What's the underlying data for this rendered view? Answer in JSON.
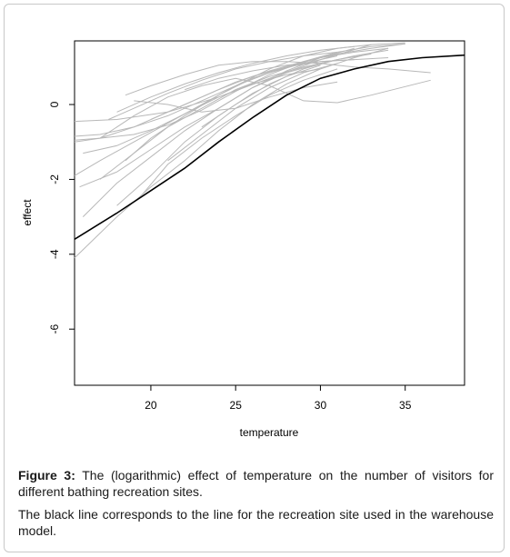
{
  "caption": {
    "figure_label": "Figure 3:",
    "figure_text": " The (logarithmic) effect of temperature on the number of visitors for different bathing recreation sites.",
    "note": "The black line corresponds to the line for the recreation site used in the warehouse model."
  },
  "chart_data": {
    "type": "line",
    "xlabel": "temperature",
    "ylabel": "effect",
    "xlim": [
      15.5,
      38.5
    ],
    "ylim": [
      -7.5,
      1.7
    ],
    "xticks": [
      20,
      25,
      30,
      35
    ],
    "yticks": [
      0,
      -2,
      -4,
      -6
    ],
    "grid": false,
    "colors": {
      "highlight": "#000000",
      "others": "#b8b8b8"
    },
    "series": [
      {
        "highlight": true,
        "x": [
          15.5,
          18,
          20,
          22,
          24,
          26,
          28,
          30,
          32,
          34,
          36,
          38.5
        ],
        "y": [
          -3.6,
          -2.9,
          -2.3,
          -1.7,
          -1.0,
          -0.35,
          0.25,
          0.7,
          0.95,
          1.15,
          1.25,
          1.32
        ]
      },
      {
        "x": [
          15.5,
          18,
          21,
          24,
          27,
          30,
          33
        ],
        "y": [
          -0.45,
          -0.4,
          -0.2,
          0.2,
          0.7,
          1.2,
          1.6
        ]
      },
      {
        "x": [
          15.5,
          17,
          19,
          21,
          23,
          25,
          27,
          29,
          31,
          33,
          35
        ],
        "y": [
          -1.0,
          -0.9,
          -0.6,
          -0.2,
          0.2,
          0.6,
          0.9,
          1.15,
          1.35,
          1.5,
          1.62
        ]
      },
      {
        "x": [
          15.5,
          17,
          19,
          21,
          23,
          25,
          27,
          29,
          31,
          33,
          35
        ],
        "y": [
          -1.9,
          -1.5,
          -1.0,
          -0.5,
          0.0,
          0.5,
          0.95,
          1.3,
          1.5,
          1.6,
          1.65
        ]
      },
      {
        "x": [
          15.5,
          18,
          20,
          22,
          24,
          26,
          28,
          30,
          32,
          34
        ],
        "y": [
          -4.1,
          -3.0,
          -2.2,
          -1.5,
          -0.7,
          0.0,
          0.55,
          0.95,
          1.25,
          1.5
        ]
      },
      {
        "x": [
          15.5,
          17,
          19,
          21,
          23,
          25,
          27,
          29,
          31,
          33,
          35
        ],
        "y": [
          -0.95,
          -0.9,
          -0.8,
          -0.55,
          -0.15,
          0.35,
          0.8,
          1.15,
          1.4,
          1.55,
          1.62
        ]
      },
      {
        "x": [
          15.8,
          18,
          20,
          22,
          24,
          26,
          28,
          30,
          32
        ],
        "y": [
          -2.2,
          -1.8,
          -1.2,
          -0.6,
          -0.1,
          0.45,
          0.9,
          1.25,
          1.5
        ]
      },
      {
        "x": [
          18.5,
          20,
          22,
          24,
          26,
          28,
          30,
          32,
          34,
          36.5
        ],
        "y": [
          0.25,
          0.5,
          0.8,
          1.05,
          1.15,
          1.15,
          1.1,
          1.0,
          0.95,
          0.85
        ]
      },
      {
        "x": [
          17,
          19,
          21,
          23,
          25,
          27,
          29,
          31,
          33,
          36.5
        ],
        "y": [
          -0.9,
          -0.3,
          0.2,
          0.5,
          0.7,
          0.5,
          0.1,
          0.05,
          0.25,
          0.65
        ]
      },
      {
        "x": [
          16,
          18,
          20,
          22,
          24,
          26,
          28,
          30,
          32,
          34
        ],
        "y": [
          -3.0,
          -2.1,
          -1.4,
          -0.7,
          -0.1,
          0.45,
          0.85,
          1.1,
          1.3,
          1.45
        ]
      },
      {
        "x": [
          17,
          19,
          21,
          23,
          25,
          27,
          29,
          31,
          33
        ],
        "y": [
          -2.0,
          -1.3,
          -0.6,
          -0.1,
          0.4,
          0.75,
          1.0,
          1.2,
          1.35
        ]
      },
      {
        "x": [
          15.5,
          17,
          19,
          21,
          23,
          25,
          27,
          29,
          31
        ],
        "y": [
          -0.85,
          -0.8,
          -0.6,
          -0.3,
          0.1,
          0.5,
          0.85,
          1.1,
          1.3
        ]
      },
      {
        "x": [
          18,
          20,
          22,
          24,
          26,
          28,
          30
        ],
        "y": [
          -2.7,
          -1.9,
          -1.0,
          -0.3,
          0.3,
          0.75,
          1.05
        ]
      },
      {
        "x": [
          18.5,
          20,
          22,
          24,
          26,
          28,
          30,
          32,
          34
        ],
        "y": [
          -1.5,
          -0.9,
          -0.3,
          0.25,
          0.7,
          1.0,
          1.25,
          1.4,
          1.5
        ]
      },
      {
        "x": [
          19,
          21,
          23,
          25,
          27,
          29,
          31
        ],
        "y": [
          0.1,
          0.0,
          -0.2,
          -0.1,
          0.2,
          0.45,
          0.6
        ]
      },
      {
        "x": [
          16,
          18,
          20,
          22,
          24,
          26,
          28,
          30
        ],
        "y": [
          -1.3,
          -1.1,
          -0.7,
          -0.25,
          0.2,
          0.55,
          0.8,
          0.95
        ]
      },
      {
        "x": [
          20,
          22,
          24,
          26,
          28,
          30,
          32
        ],
        "y": [
          -0.4,
          0.0,
          0.4,
          0.75,
          1.0,
          1.15,
          1.2
        ]
      },
      {
        "x": [
          19.5,
          21,
          23,
          25,
          27,
          29,
          31
        ],
        "y": [
          -2.4,
          -1.6,
          -0.9,
          -0.3,
          0.25,
          0.65,
          0.95
        ]
      },
      {
        "x": [
          17.5,
          19,
          21,
          23,
          25,
          27,
          29,
          31
        ],
        "y": [
          -0.4,
          -0.1,
          0.3,
          0.65,
          0.95,
          1.15,
          1.3,
          1.4
        ]
      },
      {
        "x": [
          21,
          23,
          25,
          27,
          29,
          31
        ],
        "y": [
          -1.5,
          -0.8,
          -0.1,
          0.45,
          0.85,
          1.1
        ]
      },
      {
        "x": [
          22,
          24,
          26,
          28,
          30,
          32,
          34
        ],
        "y": [
          0.4,
          0.7,
          0.9,
          1.05,
          1.15,
          1.2,
          1.25
        ]
      },
      {
        "x": [
          23,
          25,
          27,
          29,
          31
        ],
        "y": [
          -0.6,
          0.0,
          0.55,
          0.95,
          1.2
        ]
      },
      {
        "x": [
          18,
          20,
          22,
          24,
          26,
          28,
          30,
          32
        ],
        "y": [
          -0.2,
          0.2,
          0.55,
          0.85,
          1.1,
          1.3,
          1.45,
          1.55
        ]
      }
    ]
  }
}
